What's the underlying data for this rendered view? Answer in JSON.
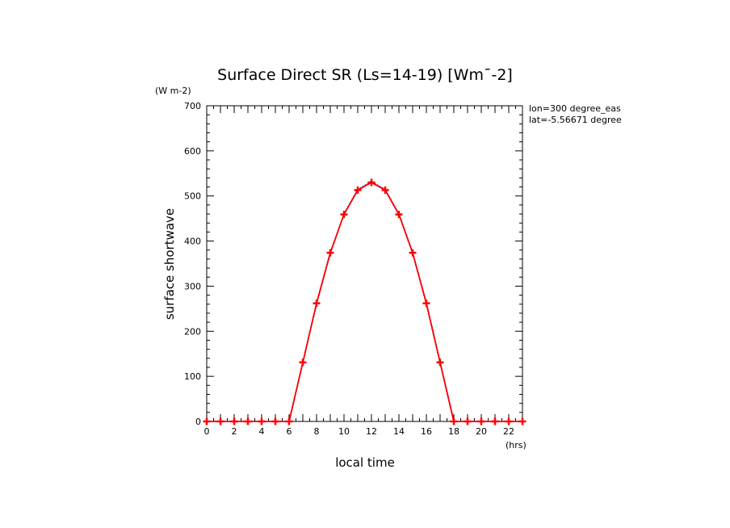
{
  "chart_data": {
    "type": "line",
    "title": "Surface Direct SR (Ls=14-19) [Wm¯-2]",
    "ylabel": "surface shortwave",
    "yunit": "(W m-2)",
    "xlabel": "local time",
    "xunit": "(hrs)",
    "annotations": [
      "lon=300 degree_eas",
      "lat=-5.56671 degree"
    ],
    "xlim": [
      0,
      23
    ],
    "ylim": [
      0,
      700
    ],
    "xticks": [
      0,
      2,
      4,
      6,
      8,
      10,
      12,
      14,
      16,
      18,
      20,
      22
    ],
    "yticks": [
      0,
      100,
      200,
      300,
      400,
      500,
      600,
      700
    ],
    "x": [
      0,
      1,
      2,
      3,
      4,
      5,
      6,
      7,
      8,
      9,
      10,
      11,
      12,
      13,
      14,
      15,
      16,
      17,
      18,
      19,
      20,
      21,
      22,
      23
    ],
    "series": [
      {
        "color": "#0000cc",
        "style": "dotted",
        "marker": "none",
        "values": [
          0,
          0,
          0,
          0,
          0,
          0,
          0,
          130,
          261,
          373,
          460,
          514,
          532,
          514,
          460,
          373,
          261,
          130,
          0,
          0,
          0,
          0,
          0,
          0
        ]
      },
      {
        "color": "#ff0000",
        "style": "solid",
        "marker": "plus",
        "values": [
          0,
          0,
          0,
          0,
          0,
          0,
          0,
          131,
          262,
          374,
          459,
          513,
          530,
          513,
          459,
          374,
          262,
          131,
          0,
          0,
          0,
          0,
          0,
          0
        ]
      }
    ],
    "grid": false,
    "legend": "none"
  }
}
